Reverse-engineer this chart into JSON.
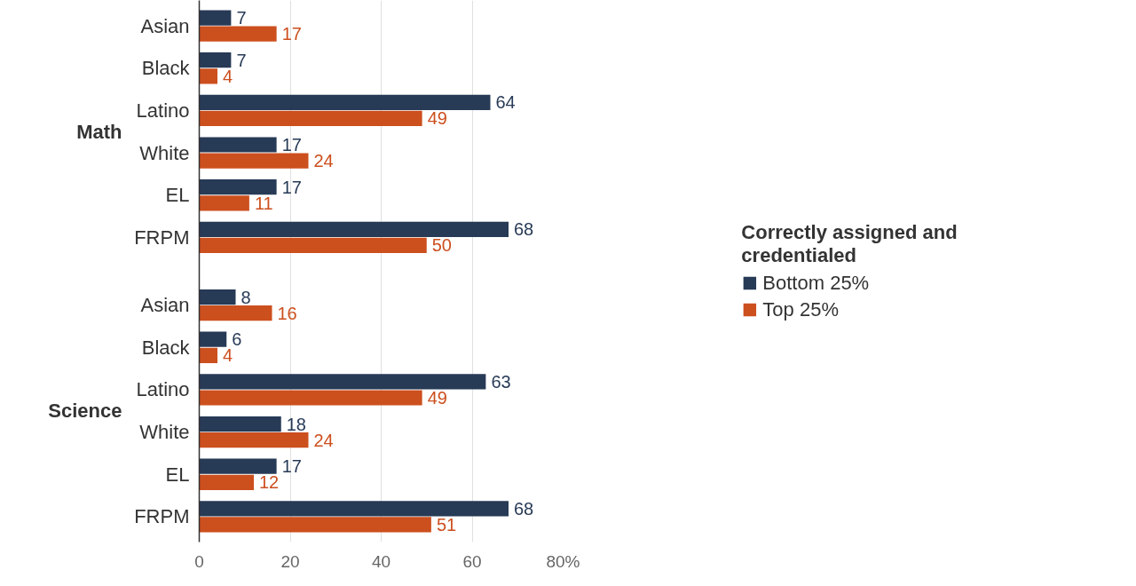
{
  "chart_data": {
    "type": "bar",
    "orientation": "horizontal",
    "categories": [
      "Asian",
      "Black",
      "Latino",
      "White",
      "EL",
      "FRPM",
      "Asian",
      "Black",
      "Latino",
      "White",
      "EL",
      "FRPM"
    ],
    "series": [
      {
        "name": "Bottom 25%",
        "color": "#273a56",
        "values": [
          7,
          7,
          64,
          17,
          17,
          68,
          8,
          6,
          63,
          18,
          17,
          68
        ]
      },
      {
        "name": "Top 25%",
        "color": "#cc4f1e",
        "values": [
          17,
          4,
          49,
          24,
          11,
          50,
          16,
          4,
          49,
          24,
          12,
          51
        ]
      }
    ],
    "annotations": [
      "Math",
      "Science"
    ],
    "legend_title": "Correctly assigned and credentialed",
    "legend": "right",
    "data_labels": true,
    "grid": "x",
    "xlim": [
      0,
      80
    ],
    "xticks": [
      0,
      20,
      40,
      60,
      {
        "value": 80,
        "label": "80%"
      }
    ]
  }
}
